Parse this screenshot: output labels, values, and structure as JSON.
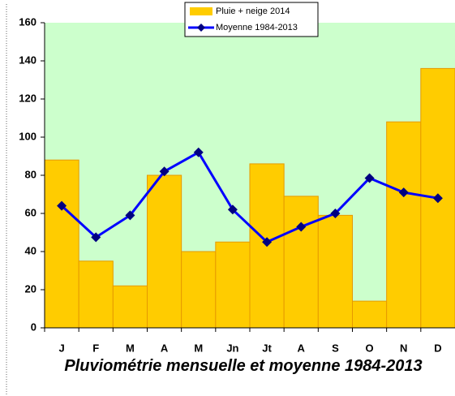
{
  "chart_data": {
    "type": "bar_line",
    "title": "Pluviométrie mensuelle et moyenne 1984-2013",
    "categories": [
      "J",
      "F",
      "M",
      "A",
      "M",
      "Jn",
      "Jt",
      "A",
      "S",
      "O",
      "N",
      "D"
    ],
    "series": [
      {
        "name": "Pluie + neige 2014",
        "color": "#ffcc00",
        "type": "bar",
        "values": [
          88,
          35,
          22,
          80,
          40,
          45,
          86,
          69,
          59,
          14,
          108,
          136
        ]
      },
      {
        "name": "Moyenne 1984-2013",
        "color": "#0000ff",
        "type": "line",
        "values": [
          64,
          47.5,
          59,
          82,
          92,
          62,
          45,
          53,
          60,
          78.5,
          71,
          68
        ]
      }
    ],
    "ylim": [
      0,
      160
    ],
    "yticks": [
      0,
      20,
      40,
      60,
      80,
      100,
      120,
      140,
      160
    ],
    "grid": false,
    "legend": "top"
  }
}
